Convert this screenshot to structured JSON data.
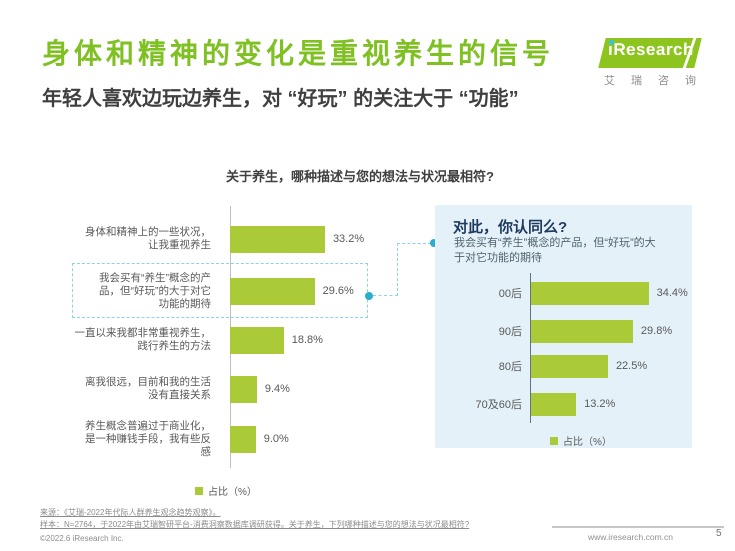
{
  "header": {
    "title": "身体和精神的变化是重视养生的信号",
    "subtitle": "年轻人喜欢边玩边养生，对 “好玩” 的关注大于 “功能”",
    "logo": {
      "brand": "iResearch",
      "brand_cn": "艾瑞咨询"
    }
  },
  "colors": {
    "title_green": "#7FC122",
    "bar_green": "#ABCA38",
    "panel_blue": "#E4F1F9",
    "navy": "#1E3A5F",
    "teal_dot": "#29AECE",
    "dashed_line": "#8FD2EA"
  },
  "chart_data": [
    {
      "type": "bar",
      "orientation": "horizontal",
      "title": "关于养生，哪种描述与您的想法与状况最相符?",
      "categories": [
        "身体和精神上的一些状况，\n让我重视养生",
        "我会买有“养生”概念的产\n品，但“好玩”的大于对它\n功能的期待",
        "一直以来我都非常重视养生，\n践行养生的方法",
        "离我很远，目前和我的生活\n没有直接关系",
        "养生概念普遍过于商业化，\n是一种赚钱手段，我有些反\n感"
      ],
      "values": [
        33.2,
        29.6,
        18.8,
        9.4,
        9.0
      ],
      "value_labels": [
        "33.2%",
        "29.6%",
        "18.8%",
        "9.4%",
        "9.0%"
      ],
      "legend": "占比（%）",
      "highlighted_index": 1,
      "xlim": [
        0,
        35
      ],
      "grid": false,
      "legend_position": "bottom"
    },
    {
      "type": "bar",
      "orientation": "horizontal",
      "title": "对此，你认同么?",
      "annotation": "我会买有“养生”概念的产品，但“好玩”的大\n于对它功能的期待",
      "categories": [
        "00后",
        "90后",
        "80后",
        "70及60后"
      ],
      "values": [
        34.4,
        29.8,
        22.5,
        13.2
      ],
      "value_labels": [
        "34.4%",
        "29.8%",
        "22.5%",
        "13.2%"
      ],
      "legend": "占比（%）",
      "xlim": [
        0,
        38
      ],
      "grid": false,
      "legend_position": "bottom"
    }
  ],
  "footer": {
    "source": "来源：《艾瑞-2022年代际人群养生观念趋势观察》。",
    "sample": "样本：N=2764，于2022年由艾瑞智研平台-消费洞察数据库调研获得。关于养生，下列哪种描述与您的想法与状况最相符?",
    "copyright": "©2022.6 iResearch Inc.",
    "website": "www.iresearch.com.cn",
    "page": "5"
  }
}
